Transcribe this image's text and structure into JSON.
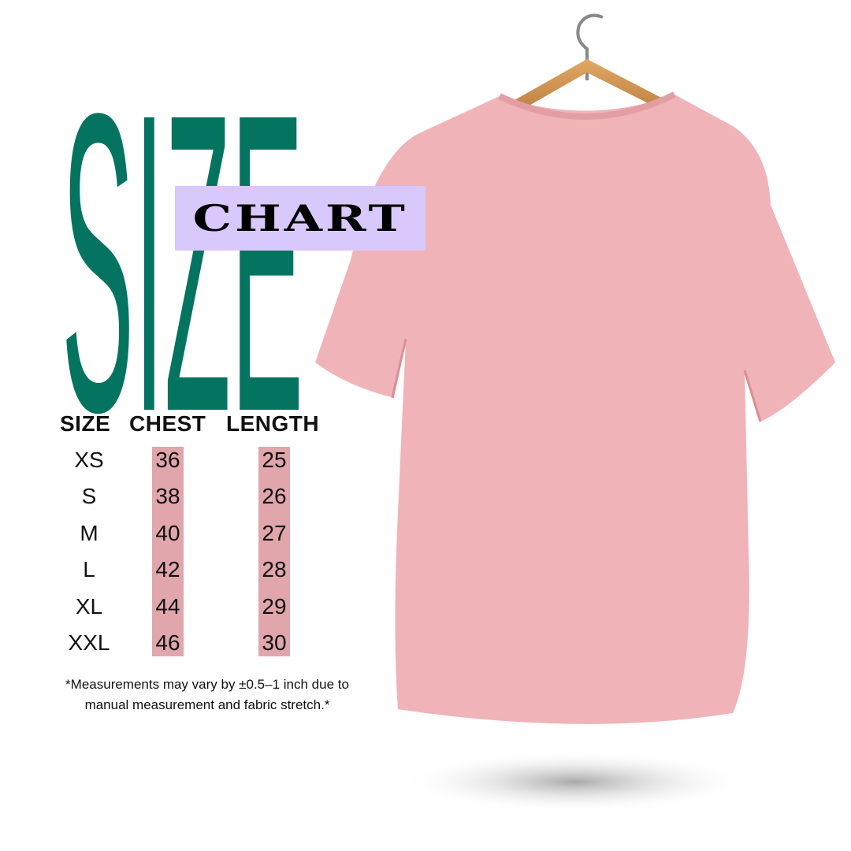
{
  "title": {
    "big": "SIZE",
    "tag": "CHART"
  },
  "colors": {
    "title_green": "#047461",
    "tag_bg": "#d8c8fc",
    "highlight": "#e0a6ab",
    "shirt": "#f0b3b8"
  },
  "table": {
    "headers": [
      "SIZE",
      "CHEST",
      "LENGTH"
    ],
    "rows": [
      {
        "size": "XS",
        "chest": "36",
        "length": "25"
      },
      {
        "size": "S",
        "chest": "38",
        "length": "26"
      },
      {
        "size": "M",
        "chest": "40",
        "length": "27"
      },
      {
        "size": "L",
        "chest": "42",
        "length": "28"
      },
      {
        "size": "XL",
        "chest": "44",
        "length": "29"
      },
      {
        "size": "XXL",
        "chest": "46",
        "length": "30"
      }
    ]
  },
  "footnote": {
    "line1": "*Measurements may vary by ±0.5–1 inch due to",
    "line2": "manual measurement and fabric stretch.*"
  },
  "product": {
    "image": "pink-tshirt-on-hanger"
  }
}
